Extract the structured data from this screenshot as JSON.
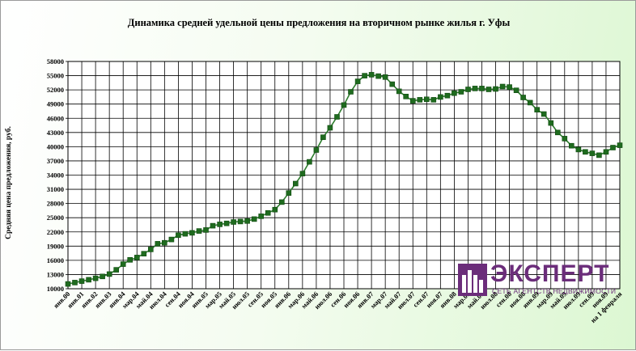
{
  "chart_data": {
    "type": "line",
    "title": "Динамика средней удельной цены предложения на вторичном рынке жилья г. Уфы",
    "ylabel": "Средняя цена предложения, руб.",
    "xlabel": "",
    "ylim": [
      10000,
      58000
    ],
    "yticks": [
      10000,
      13000,
      16000,
      19000,
      22000,
      25000,
      28000,
      31000,
      34000,
      37000,
      40000,
      43000,
      46000,
      49000,
      52000,
      55000,
      58000
    ],
    "grid": true,
    "legend": "none",
    "x_tick_labels": [
      "янв.00",
      "янв.01",
      "янв.02",
      "янв.03",
      "янв.04",
      "мар.04",
      "май.04",
      "июл.04",
      "сен.04",
      "ноя.04",
      "янв.05",
      "мар.05",
      "май.05",
      "июл.05",
      "сен.05",
      "ноя.05",
      "янв.06",
      "мар.06",
      "май.06",
      "июл.06",
      "сен.06",
      "ноя.06",
      "янв.07",
      "мар.07",
      "май.07",
      "июл.07",
      "сен.07",
      "ноя.07",
      "янв.08",
      "мар.08",
      "май.08",
      "июл.08",
      "сен.08",
      "ноя.08",
      "янв.09",
      "мар.09",
      "май.09",
      "июл.09",
      "сен.09",
      "ноя.09",
      "на 1 февраля"
    ],
    "series": [
      {
        "values": [
          11000,
          11300,
          11600,
          11900,
          12200,
          12600,
          13100,
          14000,
          15200,
          16100,
          16600,
          17400,
          18300,
          19500,
          19700,
          20400,
          21300,
          21600,
          21800,
          22200,
          22400,
          23300,
          23600,
          23800,
          24100,
          24200,
          24300,
          24700,
          25300,
          26000,
          26700,
          28300,
          30200,
          32200,
          34300,
          36800,
          39300,
          42000,
          44000,
          46300,
          48800,
          51600,
          53800,
          55000,
          55200,
          54900,
          54700,
          53200,
          51700,
          50600,
          49700,
          49900,
          50000,
          49900,
          50500,
          50800,
          51300,
          51600,
          52100,
          52300,
          52300,
          52100,
          52200,
          52700,
          52600,
          51900,
          50400,
          49300,
          47800,
          46900,
          45000,
          43000,
          41700,
          40200,
          39400,
          38900,
          38600,
          38200,
          38900,
          39800,
          40300
        ]
      }
    ],
    "colors": {
      "line": "#2e7d2e",
      "marker": "#1f6b1f",
      "grid": "#000000",
      "title": "#000000"
    }
  },
  "logo": {
    "word": "ЭКСПЕРТ",
    "subtitle": "СЕТЬ АГЕНТСТВ НЕДВИЖИМОСТИ",
    "color": "#6b2d7a"
  }
}
